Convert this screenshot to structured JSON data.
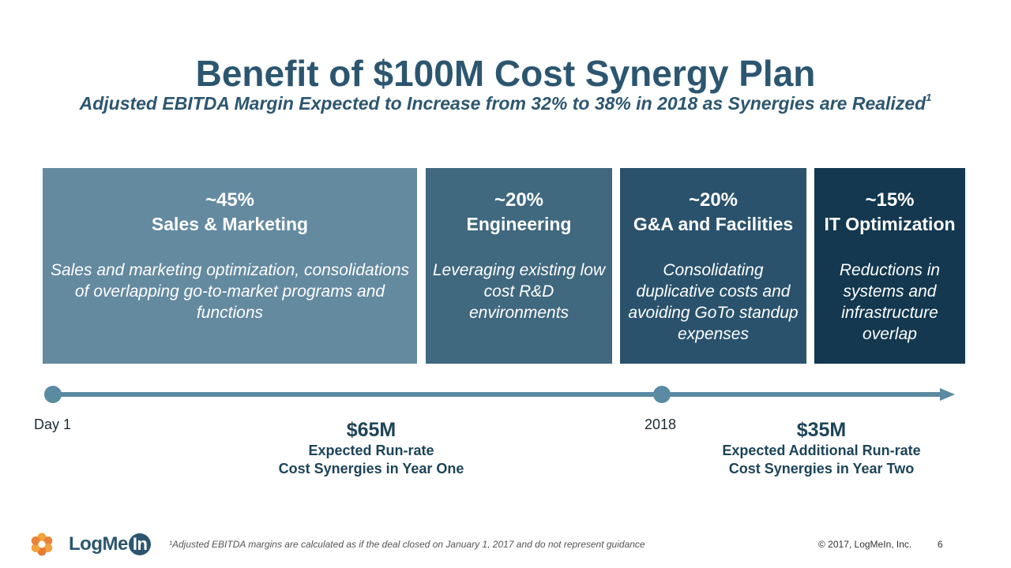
{
  "header": {
    "title": "Benefit of $100M Cost Synergy Plan",
    "subtitle": "Adjusted EBITDA Margin Expected to Increase from 32% to 38% in 2018 as Synergies are Realized",
    "subtitle_sup": "1"
  },
  "categories": [
    {
      "pct": "~45%",
      "name": "Sales & Marketing",
      "description": "Sales and marketing optimization, consolidations of overlapping go-to-market programs and functions",
      "color": "#648aa0"
    },
    {
      "pct": "~20%",
      "name": "Engineering",
      "description": "Leveraging existing low cost R&D environments",
      "color": "#40687f"
    },
    {
      "pct": "~20%",
      "name": "G&A and Facilities",
      "description": "Consolidating duplicative costs and avoiding GoTo standup expenses",
      "color": "#2a526c"
    },
    {
      "pct": "~15%",
      "name": "IT Optimization",
      "description": "Reductions in systems and infrastructure overlap",
      "color": "#13384f"
    }
  ],
  "timeline": {
    "start_label": "Day 1",
    "mid_label": "2018",
    "color": "#5b8aa3"
  },
  "amounts": [
    {
      "value": "$65M",
      "line1": "Expected Run-rate",
      "line2": "Cost Synergies in Year One"
    },
    {
      "value": "$35M",
      "line1": "Expected Additional Run-rate",
      "line2": "Cost Synergies in Year Two"
    }
  ],
  "footer": {
    "logo_text": "LogMe",
    "logo_in": "In",
    "footnote": "¹Adjusted EBITDA margins are calculated as if the deal closed on January 1, 2017 and do not represent guidance",
    "copyright": "© 2017, LogMeIn, Inc.",
    "page_number": "6"
  }
}
